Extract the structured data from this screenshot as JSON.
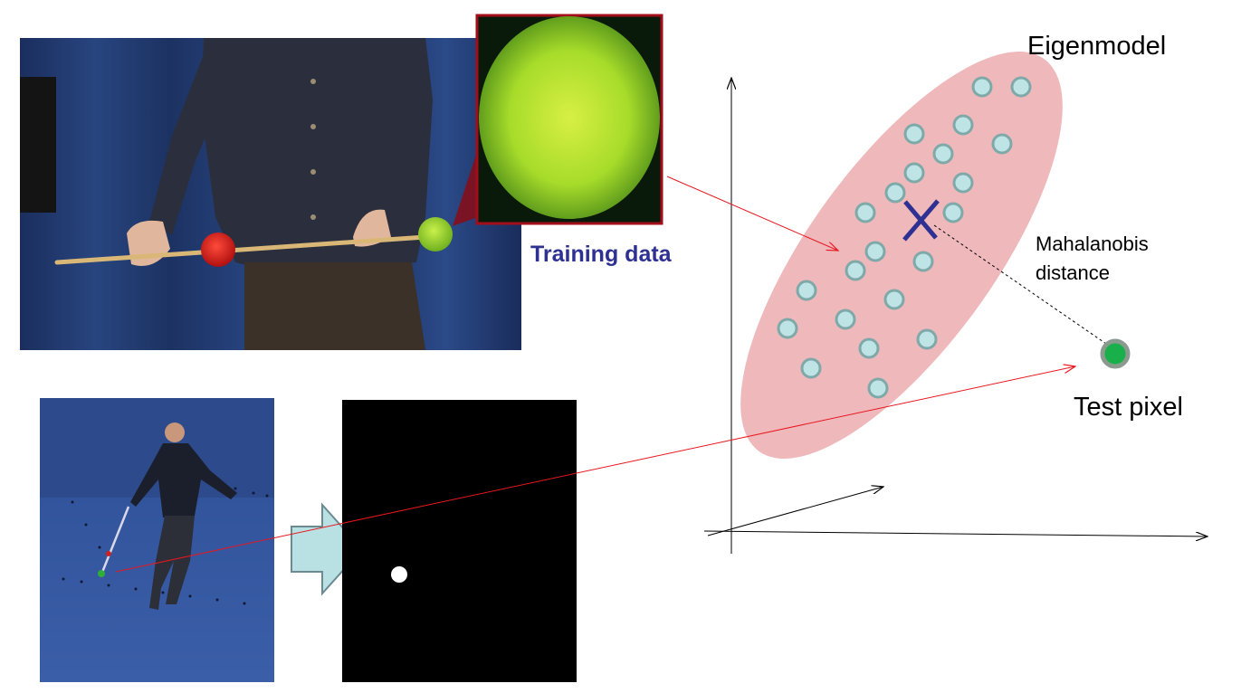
{
  "labels": {
    "eigenmodel": "Eigenmodel",
    "training_data": "Training data",
    "mahalanobis_line1": "Mahalanobis",
    "mahalanobis_line2": "distance",
    "test_pixel": "Test pixel"
  },
  "colors": {
    "training_label": "#2e3192",
    "ellipse_fill": "#efb8bb",
    "sample_fill": "#bfe4e6",
    "sample_stroke": "#7fa9a9",
    "mean_marker": "#2e3192",
    "test_pixel_fill": "#19b04b",
    "test_pixel_stroke": "#8a9a8f",
    "arrow_red": "#e8171f",
    "zoom_border": "#a30d1a",
    "process_arrow_fill": "#b9e0e3",
    "process_arrow_stroke": "#6b8b93",
    "photo_background": "#1f3a6e",
    "mask_background": "#000000",
    "ball_green": "#9bdc23",
    "ball_red": "#e0191c"
  },
  "images": {
    "top_photo": "person holding rod with red and green balls",
    "zoom_patch": "close-up of green ball",
    "bottom_photo": "person walking with wand on blue floor",
    "mask": "binary segmentation mask with white blob"
  },
  "icons": [
    "mean-cross-icon",
    "process-arrow-icon",
    "axis-arrow-icon"
  ]
}
